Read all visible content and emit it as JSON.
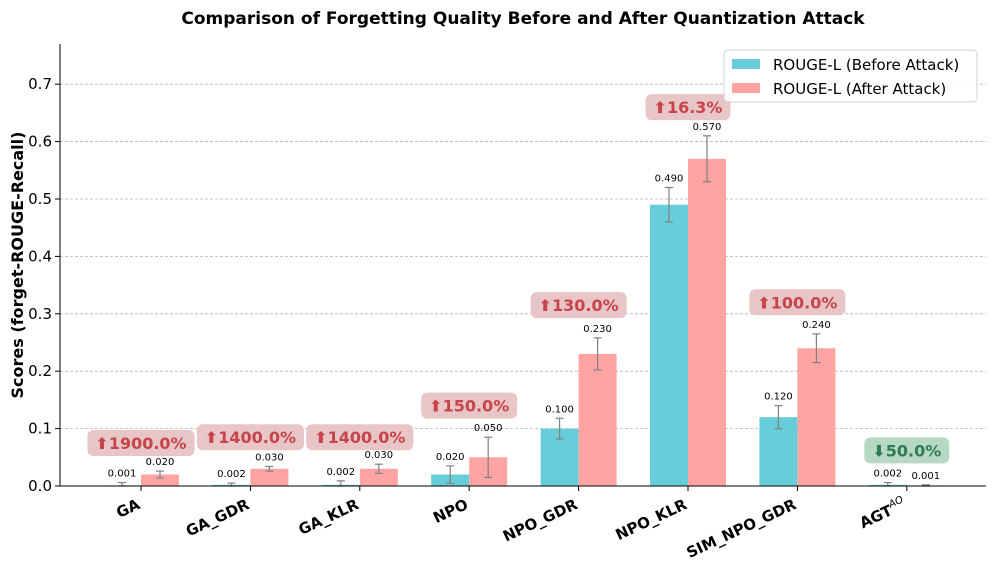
{
  "chart_data": {
    "type": "bar",
    "title": "Comparison of Forgetting Quality Before and After Quantization Attack",
    "xlabel": "",
    "ylabel": "Scores (forget-ROUGE-Recall)",
    "ylim": [
      0,
      0.77
    ],
    "yticks": [
      "0.0",
      "0.1",
      "0.2",
      "0.3",
      "0.4",
      "0.5",
      "0.6",
      "0.7"
    ],
    "grid": true,
    "legend_position": "top-right",
    "categories": [
      {
        "name": "GA"
      },
      {
        "name": "GA_GDR"
      },
      {
        "name": "GA_KLR"
      },
      {
        "name": "NPO"
      },
      {
        "name": "NPO_GDR"
      },
      {
        "name": "NPO_KLR"
      },
      {
        "name": "SIM_NPO_GDR"
      },
      {
        "name": "AGT",
        "superscript": "AO"
      }
    ],
    "series": [
      {
        "name": "ROUGE-L (Before Attack)",
        "color": "#66CDD9",
        "values": [
          0.001,
          0.002,
          0.002,
          0.02,
          0.1,
          0.49,
          0.12,
          0.002
        ],
        "labels": [
          "0.001",
          "0.002",
          "0.002",
          "0.020",
          "0.100",
          "0.490",
          "0.120",
          "0.002"
        ],
        "errors": [
          0.005,
          0.003,
          0.007,
          0.015,
          0.018,
          0.03,
          0.02,
          0.004
        ]
      },
      {
        "name": "ROUGE-L (After Attack)",
        "color": "#FFA3A3",
        "values": [
          0.02,
          0.03,
          0.03,
          0.05,
          0.23,
          0.57,
          0.24,
          0.001
        ],
        "labels": [
          "0.020",
          "0.030",
          "0.030",
          "0.050",
          "0.230",
          "0.570",
          "0.240",
          "0.001"
        ],
        "errors": [
          0.006,
          0.004,
          0.008,
          0.035,
          0.028,
          0.04,
          0.025,
          0.001
        ]
      }
    ],
    "annotations": [
      {
        "text": "⬆1900.0%",
        "direction": "up",
        "at": 0.075
      },
      {
        "text": "⬆1400.0%",
        "direction": "up",
        "at": 0.085
      },
      {
        "text": "⬆1400.0%",
        "direction": "up",
        "at": 0.085
      },
      {
        "text": "⬆150.0%",
        "direction": "up",
        "at": 0.14
      },
      {
        "text": "⬆130.0%",
        "direction": "up",
        "at": 0.315
      },
      {
        "text": "⬆16.3%",
        "direction": "up",
        "at": 0.66
      },
      {
        "text": "⬆100.0%",
        "direction": "up",
        "at": 0.32
      },
      {
        "text": "⬇50.0%",
        "direction": "down",
        "at": 0.062
      }
    ],
    "annotation_colors": {
      "up_text": "#C8444B",
      "up_bg": "#E8C5C6",
      "down_text": "#2E7D51",
      "down_bg": "#B7D8C4"
    }
  }
}
